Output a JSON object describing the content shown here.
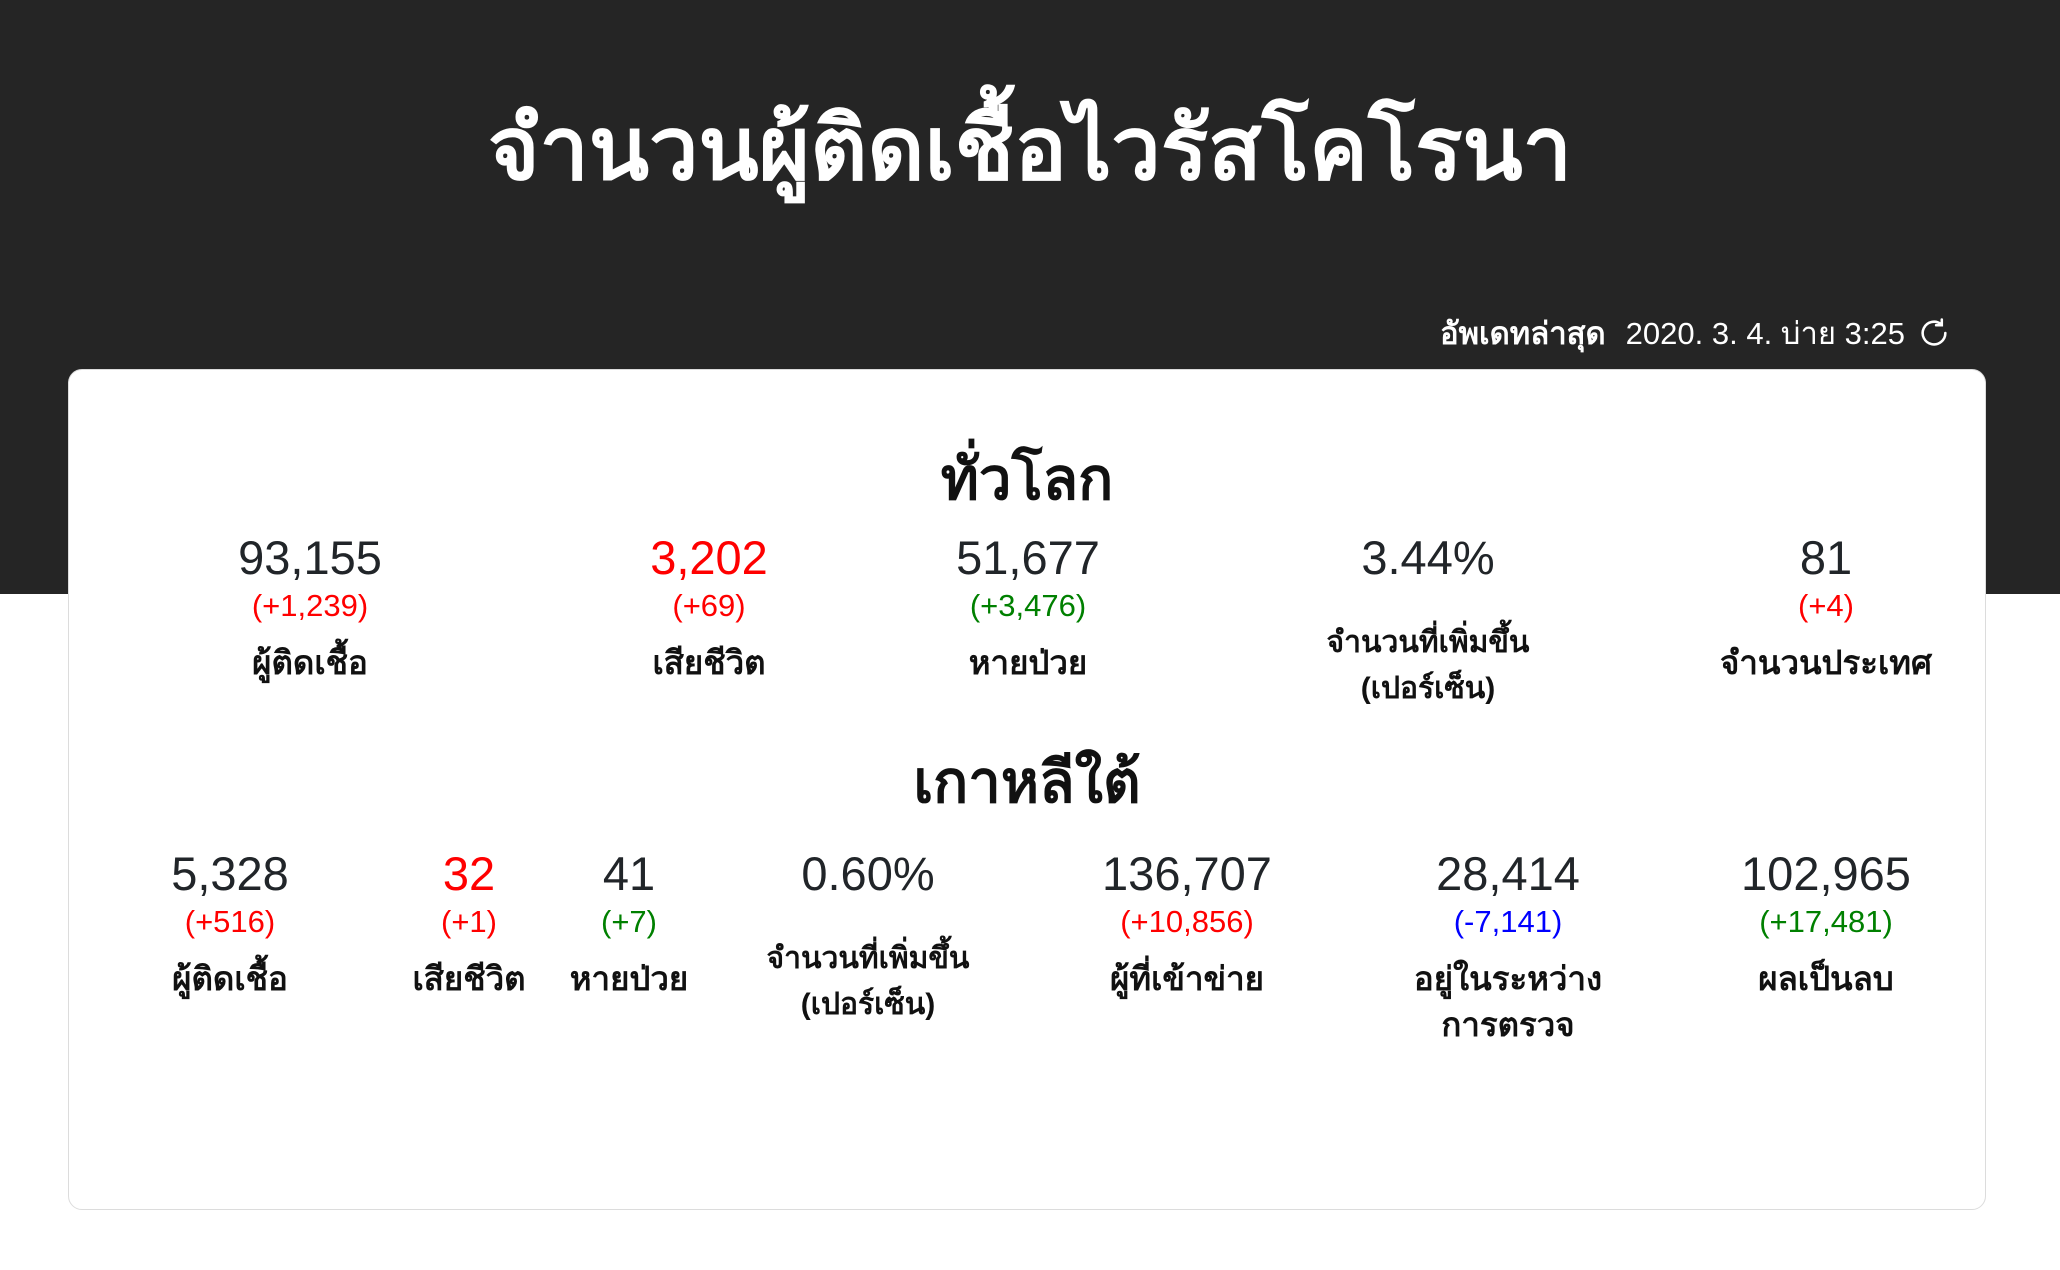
{
  "header": {
    "title": "จำนวนผู้ติดเชื้อไวรัสโคโรนา",
    "update_label": "อัพเดทล่าสุด",
    "update_time": "2020. 3. 4. บ่าย 3:25",
    "refresh_icon": "refresh-icon"
  },
  "colors": {
    "background_dark": "#252525",
    "increase": "#ff0000",
    "recovered": "#008000",
    "decrease": "#0000ff"
  },
  "world": {
    "title": "ทั่วโลก",
    "stats": [
      {
        "value": "93,155",
        "delta": "(+1,239)",
        "label": "ผู้ติดเชื้อ",
        "value_color": "#212529",
        "delta_color": "#ff0000"
      },
      {
        "value": "3,202",
        "delta": "(+69)",
        "label": "เสียชีวิต",
        "value_color": "#ff0000",
        "delta_color": "#ff0000"
      },
      {
        "value": "51,677",
        "delta": "(+3,476)",
        "label": "หายป่วย",
        "value_color": "#212529",
        "delta_color": "#008000"
      },
      {
        "value": "3.44%",
        "delta": "",
        "label": "จำนวนที่เพิ่มขึ้น",
        "label2": "(เปอร์เซ็น)",
        "value_color": "#212529",
        "delta_color": "#212529"
      },
      {
        "value": "81",
        "delta": "(+4)",
        "label": "จำนวนประเทศ",
        "value_color": "#212529",
        "delta_color": "#ff0000"
      }
    ]
  },
  "korea": {
    "title": "เกาหลีใต้",
    "stats": [
      {
        "value": "5,328",
        "delta": "(+516)",
        "label": "ผู้ติดเชื้อ",
        "value_color": "#212529",
        "delta_color": "#ff0000"
      },
      {
        "value": "32",
        "delta": "(+1)",
        "label": "เสียชีวิต",
        "value_color": "#ff0000",
        "delta_color": "#ff0000"
      },
      {
        "value": "41",
        "delta": "(+7)",
        "label": "หายป่วย",
        "value_color": "#212529",
        "delta_color": "#008000"
      },
      {
        "value": "0.60%",
        "delta": "",
        "label": "จำนวนที่เพิ่มขึ้น",
        "label2": "(เปอร์เซ็น)",
        "value_color": "#212529",
        "delta_color": "#212529"
      },
      {
        "value": "136,707",
        "delta": "(+10,856)",
        "label": "ผู้ที่เข้าข่าย",
        "value_color": "#212529",
        "delta_color": "#ff0000"
      },
      {
        "value": "28,414",
        "delta": "(-7,141)",
        "label": "อยู่ในระหว่าง",
        "label2": "การตรวจ",
        "value_color": "#212529",
        "delta_color": "#0000ff"
      },
      {
        "value": "102,965",
        "delta": "(+17,481)",
        "label": "ผลเป็นลบ",
        "value_color": "#212529",
        "delta_color": "#008000"
      }
    ]
  }
}
